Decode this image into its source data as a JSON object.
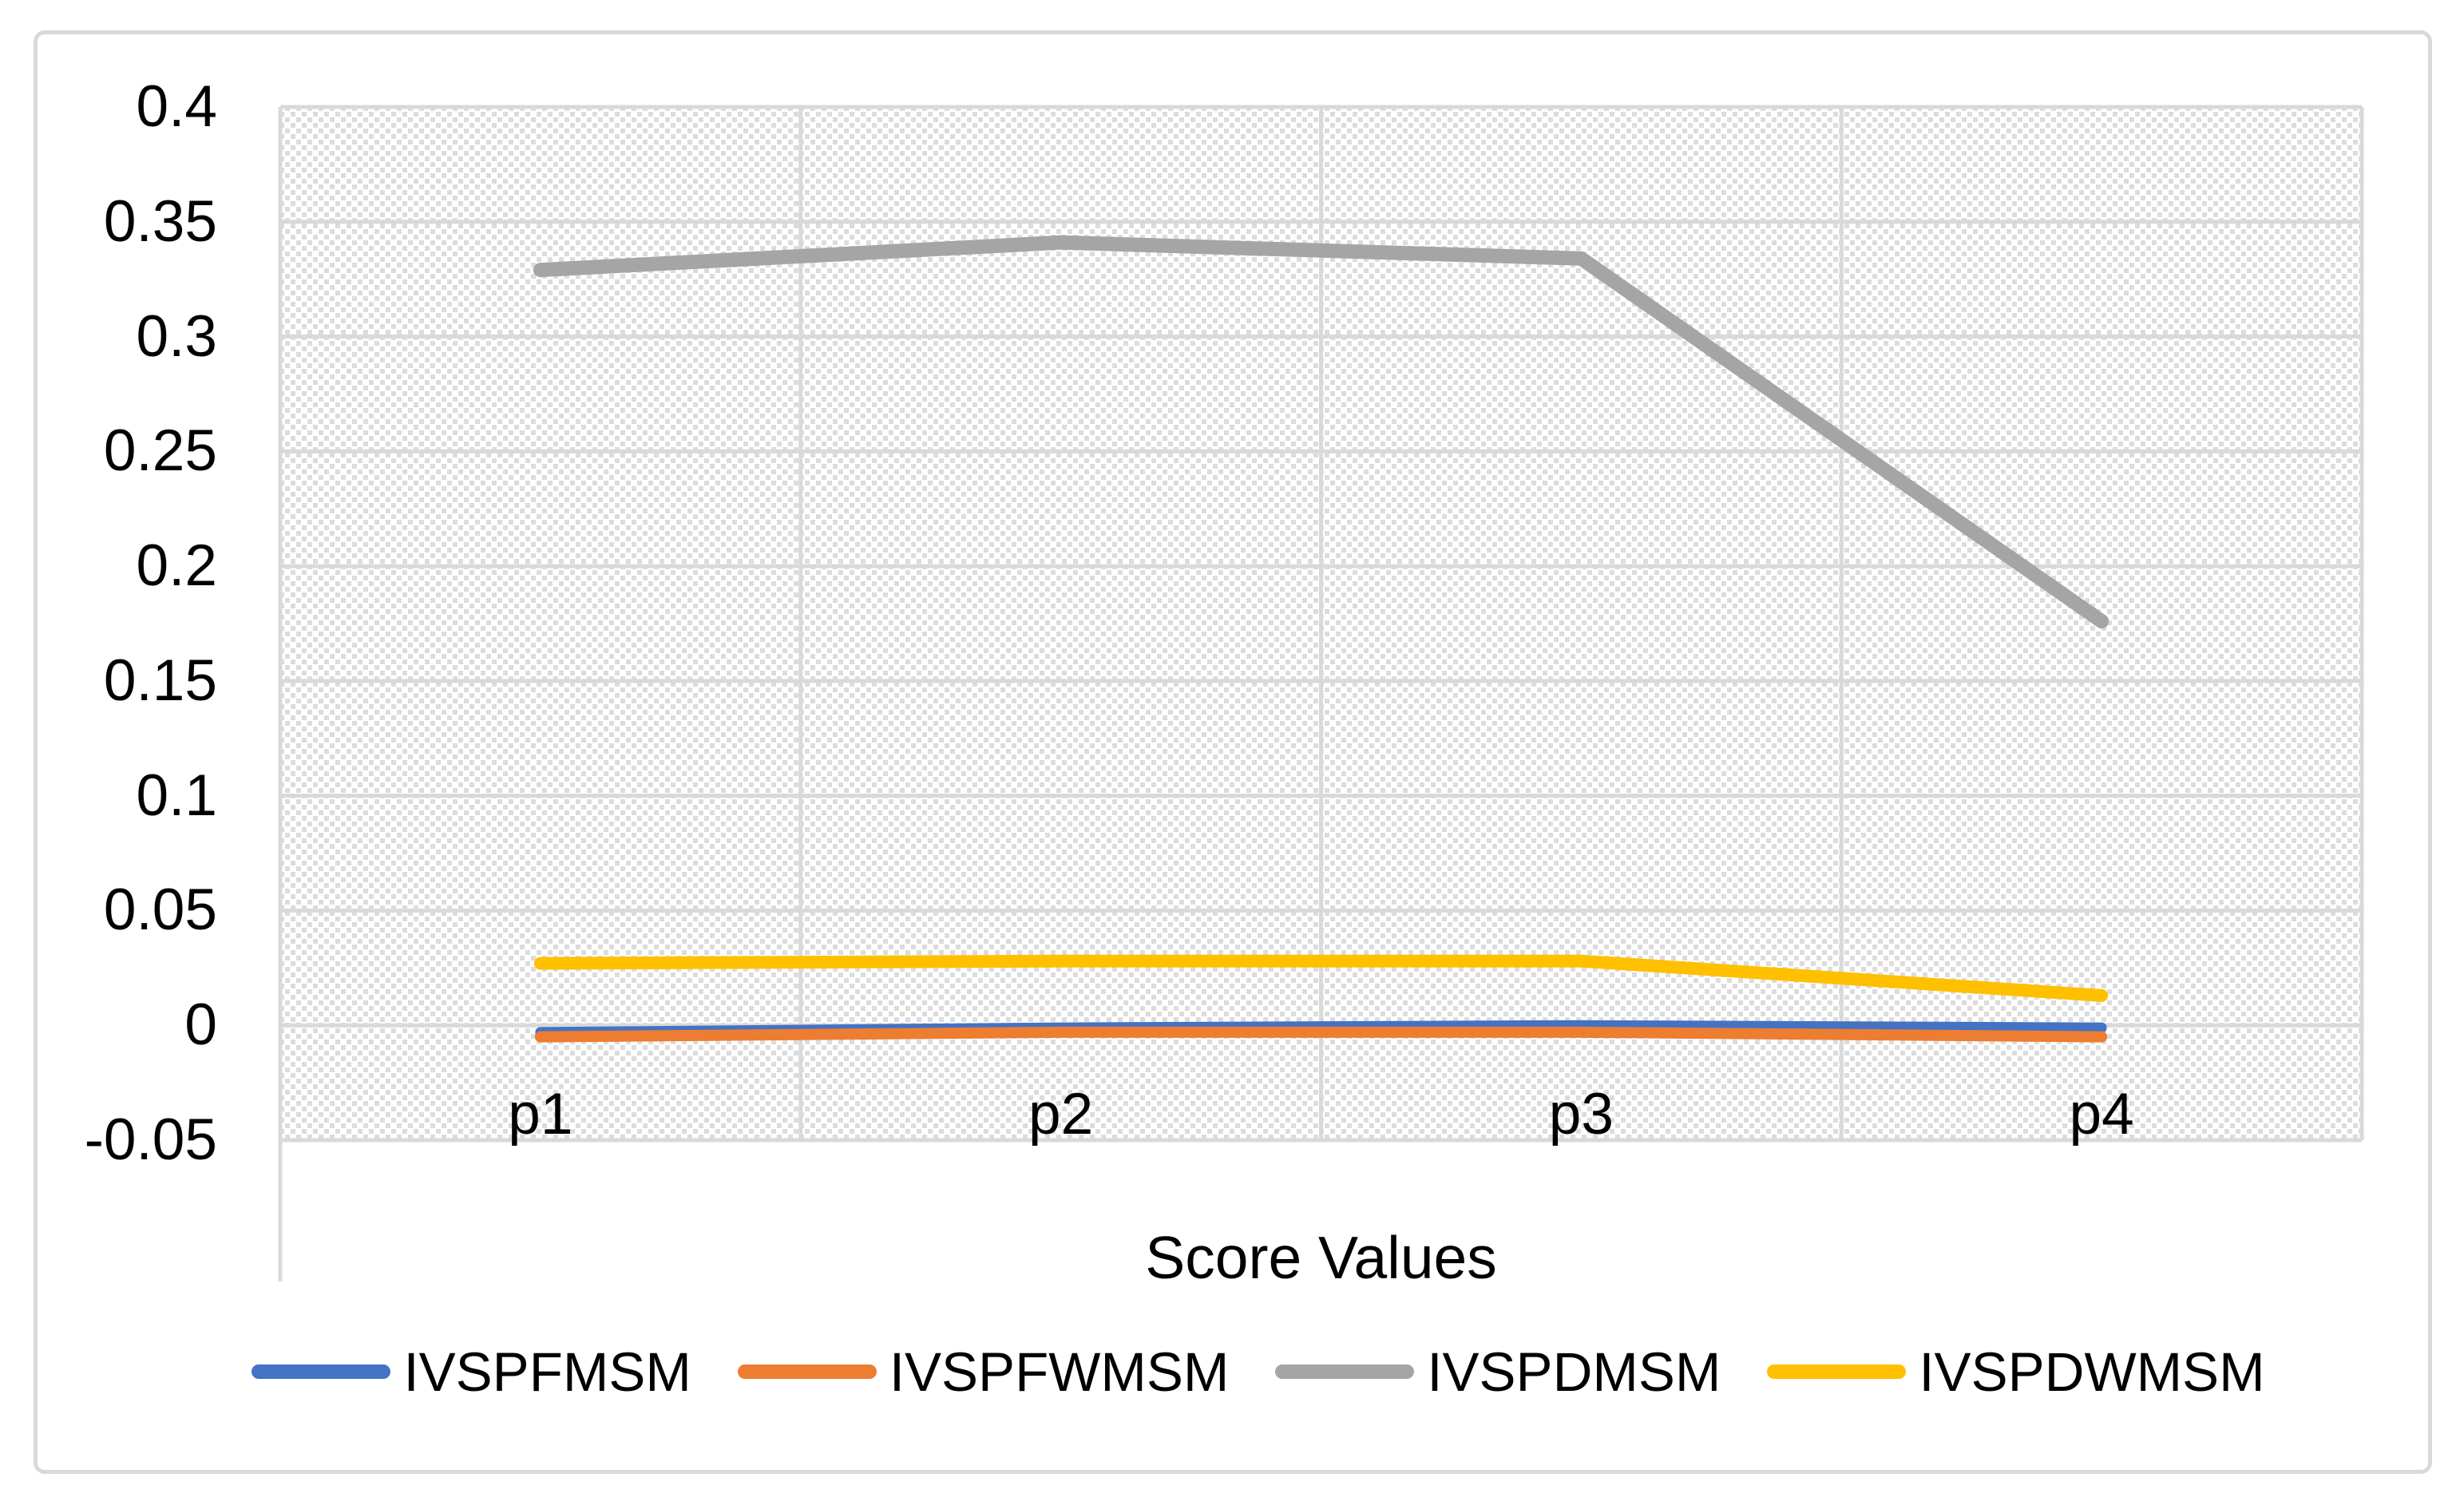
{
  "chart_data": {
    "type": "line",
    "categories": [
      "p1",
      "p2",
      "p3",
      "p4"
    ],
    "series": [
      {
        "name": "IVSPFMSM",
        "color": "#4472C4",
        "stroke_width": 13,
        "values": [
          -0.003,
          -0.001,
          0.0,
          -0.001
        ]
      },
      {
        "name": "IVSPFWMSM",
        "color": "#ED7D31",
        "stroke_width": 14,
        "values": [
          -0.005,
          -0.003,
          -0.003,
          -0.005
        ]
      },
      {
        "name": "IVSPDMSM",
        "color": "#A5A5A5",
        "stroke_width": 18,
        "values": [
          0.329,
          0.341,
          0.334,
          0.176
        ]
      },
      {
        "name": "IVSPDWMSM",
        "color": "#FFC000",
        "stroke_width": 16,
        "values": [
          0.027,
          0.028,
          0.028,
          0.013
        ]
      }
    ],
    "title": "",
    "xlabel": "Score Values",
    "ylabel": "",
    "ylim": [
      -0.05,
      0.4
    ],
    "ytick_step": 0.05,
    "ytick_labels": [
      "0.4",
      "0.35",
      "0.3",
      "0.25",
      "0.2",
      "0.15",
      "0.1",
      "0.05",
      "0",
      "-0.05"
    ],
    "grid": true,
    "legend_position": "bottom",
    "plot_background": "light-downward-diagonal-hatch"
  },
  "styles": {
    "grid_color": "#D9D9D9",
    "axis_line_color": "#D9D9D9",
    "frame_color": "#D9D9D9",
    "hatch_color": "#DCDCDC",
    "text_color": "#000000",
    "background_color": "#FFFFFF"
  }
}
